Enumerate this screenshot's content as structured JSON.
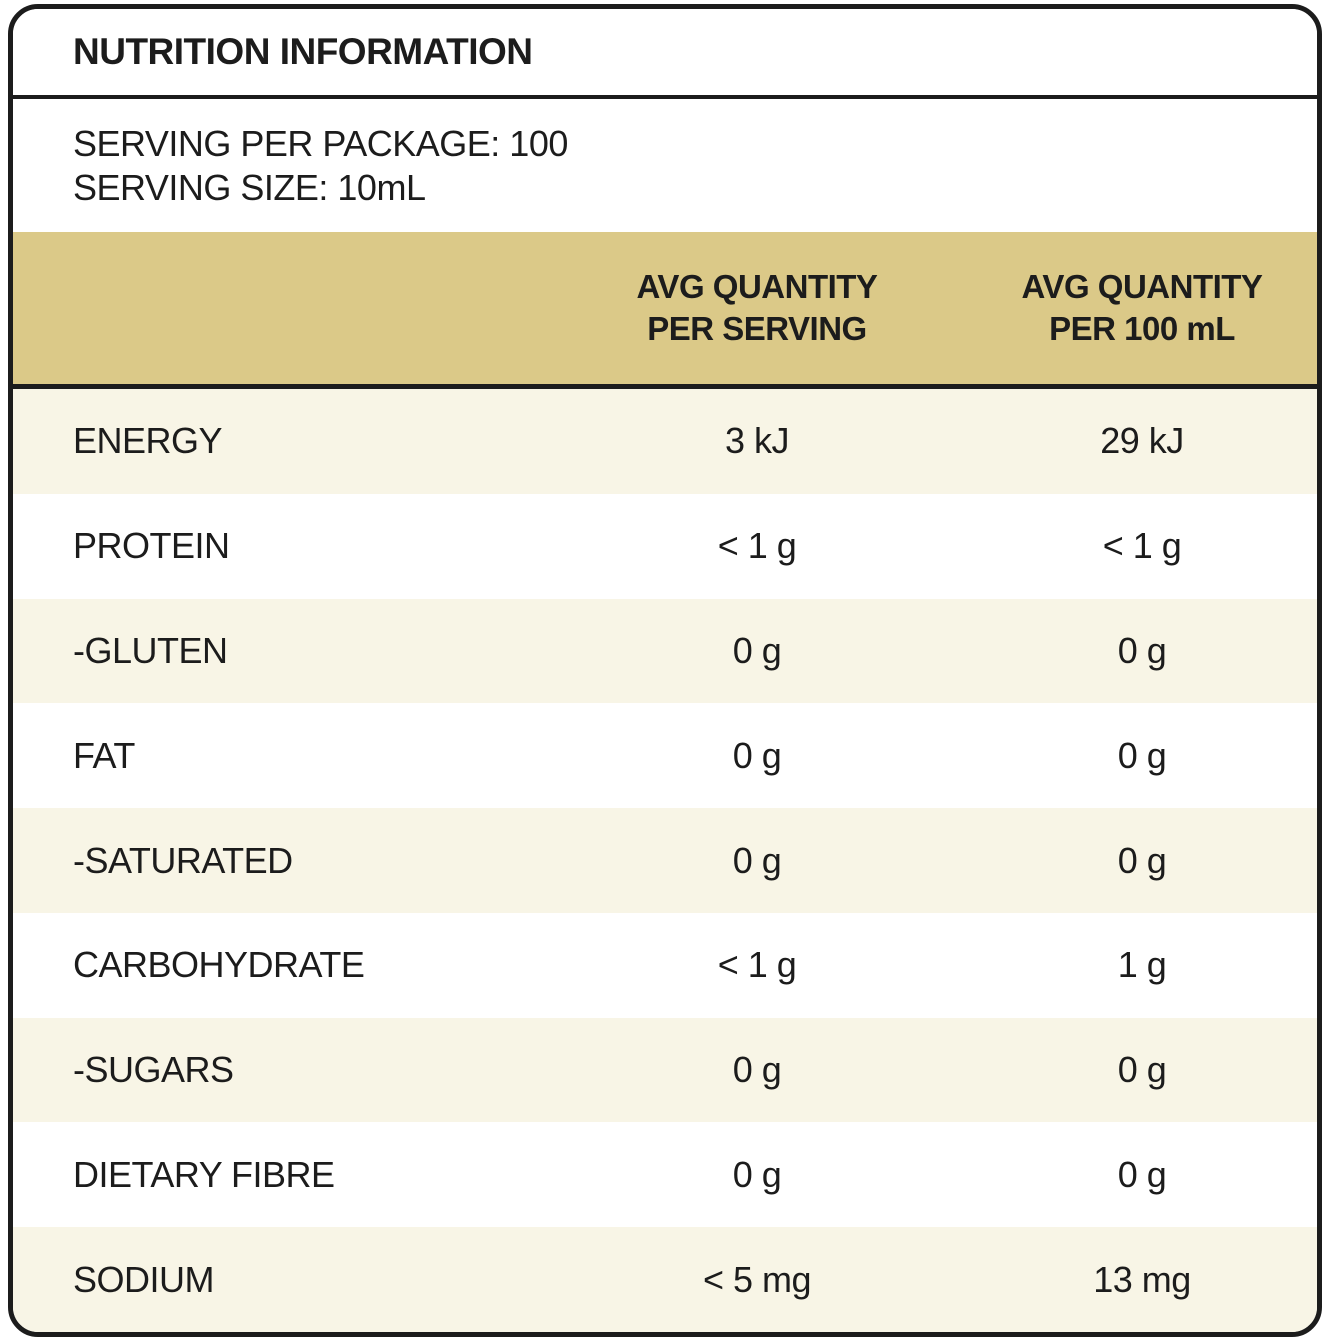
{
  "label": {
    "title": "NUTRITION INFORMATION",
    "serving_lines": [
      "SERVING PER PACKAGE: 100",
      "SERVING SIZE: 10mL"
    ],
    "columns": {
      "per_serving": "AVG QUANTITY\nPER SERVING",
      "per_100ml": "AVG QUANTITY\nPER 100 mL"
    },
    "rows": [
      {
        "name": "ENERGY",
        "per_serving": "3 kJ",
        "per_100ml": "29 kJ"
      },
      {
        "name": "PROTEIN",
        "per_serving": "< 1 g",
        "per_100ml": "< 1 g"
      },
      {
        "name": "-GLUTEN",
        "per_serving": "0 g",
        "per_100ml": "0 g"
      },
      {
        "name": "FAT",
        "per_serving": "0 g",
        "per_100ml": "0 g"
      },
      {
        "name": "-SATURATED",
        "per_serving": "0 g",
        "per_100ml": "0 g"
      },
      {
        "name": "CARBOHYDRATE",
        "per_serving": "< 1 g",
        "per_100ml": "1 g"
      },
      {
        "name": "-SUGARS",
        "per_serving": "0 g",
        "per_100ml": "0 g"
      },
      {
        "name": "DIETARY FIBRE",
        "per_serving": "0 g",
        "per_100ml": "0 g"
      },
      {
        "name": "SODIUM",
        "per_serving": "< 5 mg",
        "per_100ml": "13 mg"
      }
    ],
    "colors": {
      "header_band": "#dbc988",
      "row_stripe": "#f8f5e6",
      "row_alt": "#ffffff",
      "border_and_text": "#1c1c1c"
    }
  }
}
